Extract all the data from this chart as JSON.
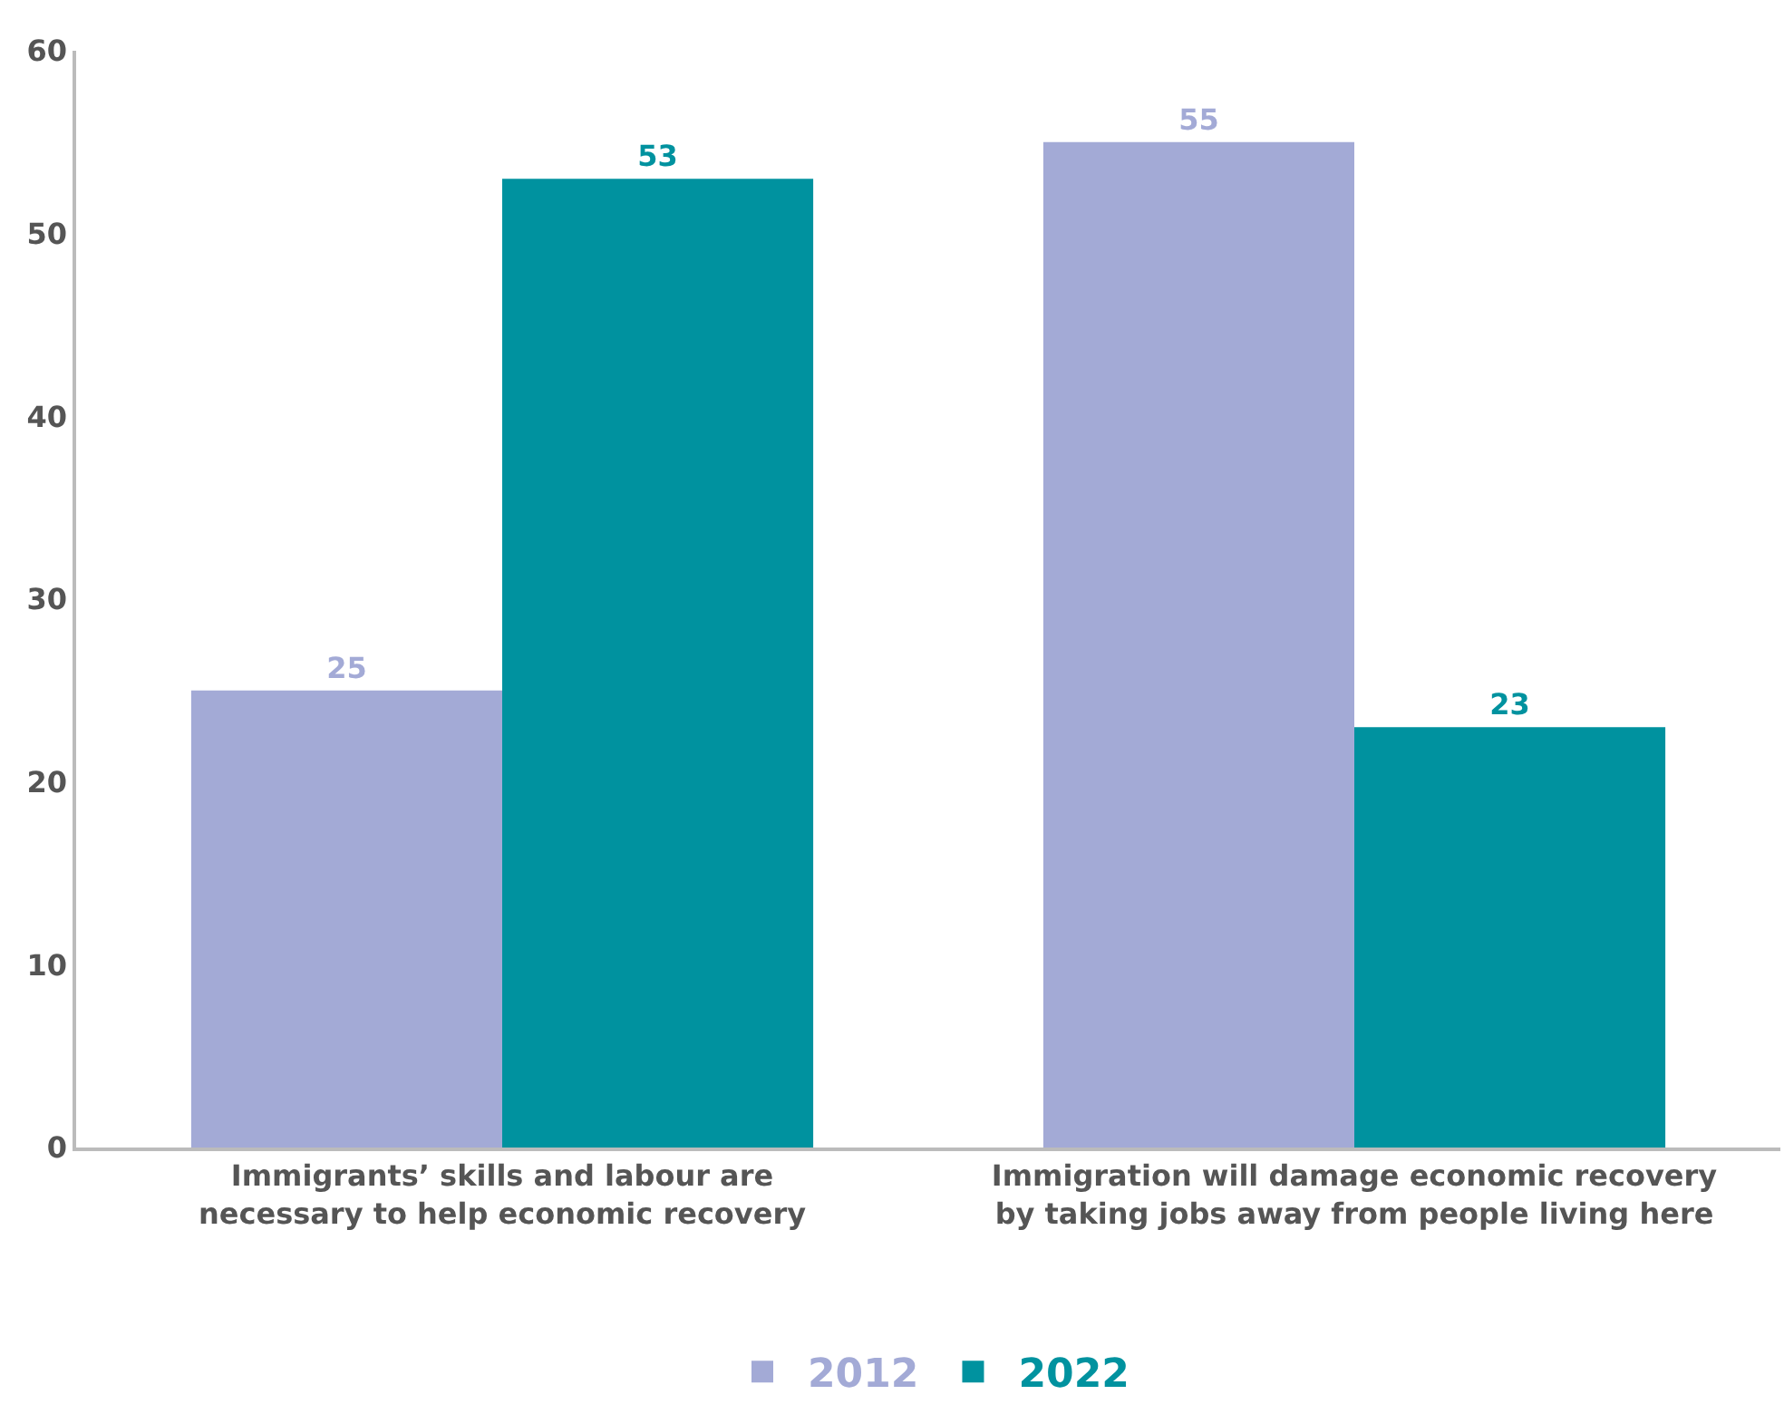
{
  "chart_data": {
    "type": "bar",
    "categories": [
      "Immigrants’ skills and labour are\nnecessary to help economic recovery",
      "Immigration will damage economic recovery\nby taking jobs away from people living here"
    ],
    "series": [
      {
        "name": "2012",
        "color": "#a3aad6",
        "values": [
          25,
          55
        ]
      },
      {
        "name": "2022",
        "color": "#00929f",
        "values": [
          53,
          23
        ]
      }
    ],
    "ylim": [
      0,
      60
    ],
    "yticks": [
      0,
      10,
      20,
      30,
      40,
      50,
      60
    ],
    "data_labels": true,
    "legend": "bottom"
  }
}
